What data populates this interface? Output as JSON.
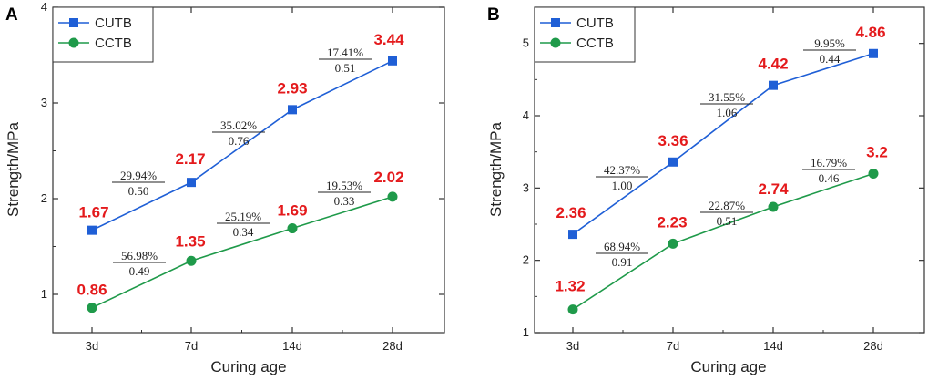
{
  "chart_data": [
    {
      "type": "line",
      "panel": "A",
      "categories": [
        "3d",
        "7d",
        "14d",
        "28d"
      ],
      "xlabel": "Curing age",
      "ylabel": "Strength/MPa",
      "ylim": [
        0.6,
        4
      ],
      "yticks": [
        1,
        2,
        3,
        4
      ],
      "legend_position": "top-left",
      "series": [
        {
          "name": "CUTB",
          "color": "#1f5fd6",
          "marker": "square",
          "values": [
            1.67,
            2.17,
            2.93,
            3.44
          ],
          "value_labels": [
            "1.67",
            "2.17",
            "2.93",
            "3.44"
          ]
        },
        {
          "name": "CCTB",
          "color": "#1f9a4a",
          "marker": "circle",
          "values": [
            0.86,
            1.35,
            1.69,
            2.02
          ],
          "value_labels": [
            "0.86",
            "1.35",
            "1.69",
            "2.02"
          ]
        }
      ],
      "annotations": {
        "CUTB": [
          {
            "pct": "29.94%",
            "diff": "0.50"
          },
          {
            "pct": "35.02%",
            "diff": "0.76"
          },
          {
            "pct": "17.41%",
            "diff": "0.51"
          }
        ],
        "CCTB": [
          {
            "pct": "56.98%",
            "diff": "0.49"
          },
          {
            "pct": "25.19%",
            "diff": "0.34"
          },
          {
            "pct": "19.53%",
            "diff": "0.33"
          }
        ]
      }
    },
    {
      "type": "line",
      "panel": "B",
      "categories": [
        "3d",
        "7d",
        "14d",
        "28d"
      ],
      "xlabel": "Curing age",
      "ylabel": "Strength/MPa",
      "ylim": [
        1,
        5.5
      ],
      "yticks": [
        1,
        2,
        3,
        4,
        5
      ],
      "legend_position": "top-left",
      "series": [
        {
          "name": "CUTB",
          "color": "#1f5fd6",
          "marker": "square",
          "values": [
            2.36,
            3.36,
            4.42,
            4.86
          ],
          "value_labels": [
            "2.36",
            "3.36",
            "4.42",
            "4.86"
          ]
        },
        {
          "name": "CCTB",
          "color": "#1f9a4a",
          "marker": "circle",
          "values": [
            1.32,
            2.23,
            2.74,
            3.2
          ],
          "value_labels": [
            "1.32",
            "2.23",
            "2.74",
            "3.2"
          ]
        }
      ],
      "annotations": {
        "CUTB": [
          {
            "pct": "42.37%",
            "diff": "1.00"
          },
          {
            "pct": "31.55%",
            "diff": "1.06"
          },
          {
            "pct": "9.95%",
            "diff": "0.44"
          }
        ],
        "CCTB": [
          {
            "pct": "68.94%",
            "diff": "0.91"
          },
          {
            "pct": "22.87%",
            "diff": "0.51"
          },
          {
            "pct": "16.79%",
            "diff": "0.46"
          }
        ]
      }
    }
  ]
}
